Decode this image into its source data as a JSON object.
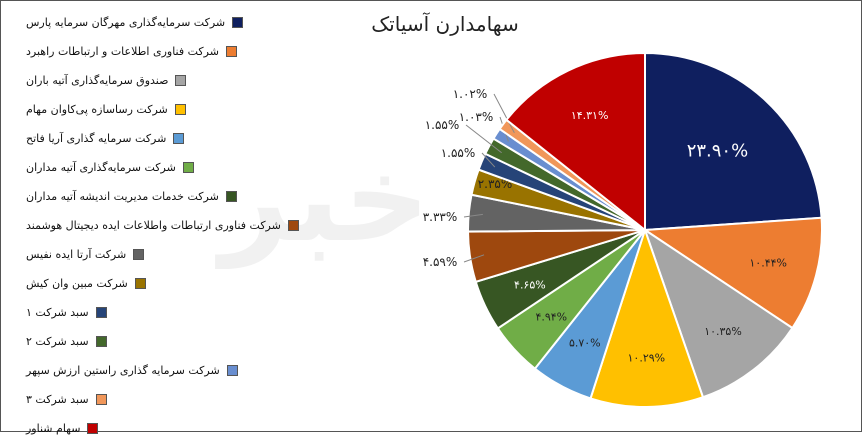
{
  "chart_data": {
    "type": "pie",
    "title": "سهامدارن آسیاتک",
    "series": [
      {
        "name": "شرکت سرمایه‌گذاری مهرگان سرمایه پارس",
        "value": 23.9,
        "label": "۲۳.۹۰%",
        "color": "#0f1f5f"
      },
      {
        "name": "شرکت فناوری اطلاعات و ارتباطات راهبرد",
        "value": 10.44,
        "label": "۱۰.۴۴%",
        "color": "#ed7d31"
      },
      {
        "name": "صندوق سرمایه‌گذاری آتیه باران",
        "value": 10.35,
        "label": "۱۰.۳۵%",
        "color": "#a5a5a5"
      },
      {
        "name": "شرکت رساسازه پی‌کاوان مهام",
        "value": 10.29,
        "label": "۱۰.۲۹%",
        "color": "#ffc000"
      },
      {
        "name": "شرکت سرمایه گذاری آریا فاتح",
        "value": 5.7,
        "label": "۵.۷۰%",
        "color": "#5b9bd5"
      },
      {
        "name": "شرکت سرمایه‌گذاری آتیه مداران",
        "value": 4.94,
        "label": "۴.۹۴%",
        "color": "#70ad47"
      },
      {
        "name": "شرکت خدمات مدیریت اندیشه آتیه مداران",
        "value": 4.65,
        "label": "۴.۶۵%",
        "color": "#375623"
      },
      {
        "name": "شرکت فناوری ارتباطات واطلاعات ایده دیجیتال هوشمند",
        "value": 4.59,
        "label": "۴.۵۹%",
        "color": "#9e480e"
      },
      {
        "name": "شرکت آرتا ایده نفیس",
        "value": 3.33,
        "label": "۳.۳۳%",
        "color": "#636363"
      },
      {
        "name": "شرکت مبین وان کیش",
        "value": 2.35,
        "label": "۲.۳۵%",
        "color": "#997300"
      },
      {
        "name": "سبد شرکت ۱",
        "value": 1.55,
        "label": "۱.۵۵%",
        "color": "#264478"
      },
      {
        "name": "سبد شرکت ۲",
        "value": 1.55,
        "label": "۱.۵۵%",
        "color": "#43682b"
      },
      {
        "name": "شرکت سرمایه گذاری راستین ارزش سپهر",
        "value": 1.03,
        "label": "۱.۰۳%",
        "color": "#698ed0"
      },
      {
        "name": "سبد شرکت ۳",
        "value": 1.02,
        "label": "۱.۰۲%",
        "color": "#f1975a"
      },
      {
        "name": "سهام شناور",
        "value": 14.31,
        "label": "۱۴.۳۱%",
        "color": "#c00000"
      }
    ],
    "legend": "left"
  },
  "watermark": "خبر"
}
